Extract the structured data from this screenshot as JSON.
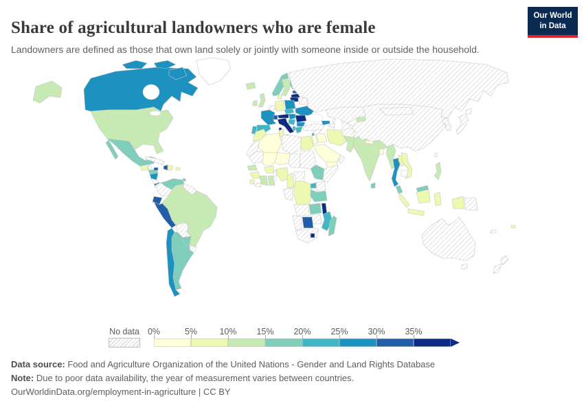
{
  "header": {
    "title": "Share of agricultural landowners who are female",
    "subtitle": "Landowners are defined as those that own land solely or jointly with someone inside or outside the household.",
    "logo": {
      "line1": "Our World",
      "line2": "in Data",
      "bg_color": "#0b2a52",
      "accent_color": "#e0232c"
    }
  },
  "legend": {
    "no_data_label": "No data",
    "tick_labels": [
      "0%",
      "5%",
      "10%",
      "15%",
      "20%",
      "25%",
      "30%",
      "35%"
    ],
    "palette": [
      "#ffffd9",
      "#edf8b1",
      "#c7e9b4",
      "#7fcdbb",
      "#41b6c4",
      "#1d91c0",
      "#225ea8",
      "#0c2c84"
    ],
    "bin_ranges": [
      "0-5%",
      "5-10%",
      "10-15%",
      "15-20%",
      "20-25%",
      "25-30%",
      "30-35%",
      ">35%"
    ],
    "no_data_style": "hatched"
  },
  "footer": {
    "source_label": "Data source:",
    "source_text": " Food and Agriculture Organization of the United Nations - Gender and Land Rights Database",
    "note_label": "Note:",
    "note_text": " Due to poor data availability, the year of measurement varies between countries.",
    "link": "OurWorldinData.org/employment-in-agriculture",
    "separator": " | ",
    "license": "CC BY"
  },
  "chart_data": {
    "type": "choropleth_map",
    "title": "Share of agricultural landowners who are female",
    "unit": "%",
    "bins": [
      "0-5%",
      "5-10%",
      "10-15%",
      "15-20%",
      "20-25%",
      "25-30%",
      "30-35%",
      ">35%"
    ],
    "legend_position": "bottom",
    "country_bins": {
      "Canada": 5,
      "United States": 2,
      "Mexico": 3,
      "Guatemala": 1,
      "Belize": "nodata",
      "Honduras": 3,
      "Nicaragua": 5,
      "Costa Rica": "blank",
      "Panama": 5,
      "Cuba": "nodata",
      "Jamaica": 6,
      "Haiti": 6,
      "Dominican Republic": 1,
      "Puerto Rico": 1,
      "Trinidad and Tobago": 3,
      "Venezuela": 3,
      "Colombia": "nodata",
      "Guyana": "nodata",
      "Ecuador": 6,
      "Peru": 6,
      "Brazil": 2,
      "Bolivia": "nodata",
      "Paraguay": 3,
      "Uruguay": "nodata",
      "Chile": 5,
      "Argentina": 3,
      "Greenland": "blank",
      "Iceland": 2,
      "Ireland": 2,
      "United Kingdom": 2,
      "Portugal": 4,
      "Spain": 4,
      "France": 5,
      "Belgium-Netherlands": "nodata",
      "Germany": 1,
      "Denmark": 1,
      "Norway": 3,
      "Sweden": 2,
      "Finland": 3,
      "Estonia": 6,
      "Latvia": 7,
      "Lithuania": 7,
      "Belarus": "nodata",
      "Poland": 5,
      "Czechia": 4,
      "Switzerland": 6,
      "Austria": 7,
      "Hungary": 5,
      "Ukraine": 5,
      "Romania": 7,
      "Serbia": 4,
      "Bulgaria": 5,
      "Albania": 4,
      "Greece": 4,
      "Italy": 7,
      "Cyprus": 4,
      "Morocco": 1,
      "Western Sahara": "nodata",
      "Algeria": 0,
      "Tunisia": 1,
      "Libya": "nodata",
      "Egypt": 1,
      "Mauritania": "nodata",
      "Mali": 0,
      "Niger": 0,
      "Chad": "nodata",
      "Sudan": "nodata",
      "Ethiopia": 3,
      "Somalia": "nodata",
      "Senegal": 2,
      "Guinea": 1,
      "Sierra Leone": 1,
      "Liberia": "nodata",
      "Cote d'Ivoire": 2,
      "Ghana": 2,
      "Burkina Faso": 1,
      "Togo-Benin": "nodata",
      "Nigeria": 1,
      "Cameroon": 1,
      "Central African Republic": "nodata",
      "Democratic Republic of Congo": 1,
      "Congo-Gabon": "nodata",
      "Uganda": 4,
      "Kenya": "nodata",
      "Tanzania": 3,
      "Angola": "nodata",
      "Zambia": 3,
      "Malawi": 7,
      "Mozambique": 4,
      "Zimbabwe": "nodata",
      "Botswana": 6,
      "Namibia": "nodata",
      "South Africa": "nodata",
      "Lesotho": 7,
      "Madagascar": 3,
      "Saudi Arabia": 0,
      "Yemen": 0,
      "Oman": "nodata",
      "Iraq": 0,
      "Syria": "nodata",
      "Jordan": 0,
      "Iran": 1,
      "Turkey": "nodata",
      "Georgia": 5,
      "Azerbaijan": "nodata",
      "Russia": "nodata",
      "Kazakhstan": "nodata",
      "Uzbekistan-Turkmenistan": "nodata",
      "Kyrgyzstan": 2,
      "Tajikistan": 2,
      "Afghanistan": "nodata",
      "Pakistan": 2,
      "India": 2,
      "Nepal": 0,
      "Bangladesh": 0,
      "Sri Lanka": 3,
      "Myanmar": 2,
      "Thailand": 5,
      "Laos": 1,
      "Vietnam": 1,
      "Cambodia": "blank",
      "Malaysia": 3,
      "Indonesia": 1,
      "Philippines": 2,
      "China": "nodata",
      "Mongolia": "nodata",
      "North Korea": "nodata",
      "South Korea": "nodata",
      "Japan": "nodata",
      "Taiwan": "nodata",
      "Australia": "nodata",
      "New Zealand": "nodata",
      "Papua New Guinea": "nodata",
      "Fiji": 1,
      "New Caledonia": "nodata"
    }
  }
}
